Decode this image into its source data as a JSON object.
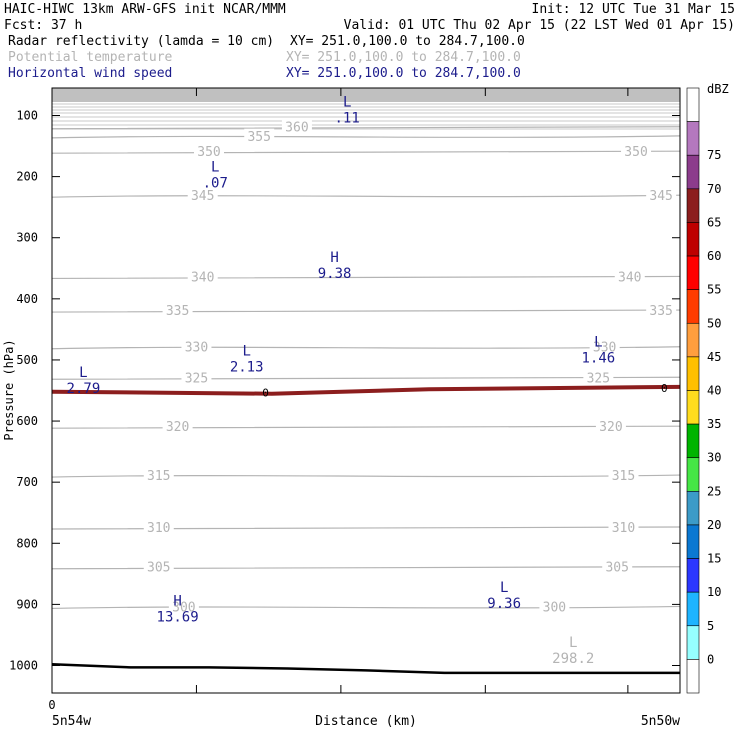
{
  "header": {
    "line1_left": "HAIC-HIWC 13km ARW-GFS init   NCAR/MMM",
    "line1_right": "Init: 12 UTC Tue 31 Mar 15",
    "fcst": "Fcst:   37 h",
    "valid": "Valid: 01 UTC Thu 02 Apr 15 (22 LST Wed 01 Apr 15)",
    "fields": [
      {
        "name": "Radar reflectivity (lamda = 10 cm)",
        "xy": "XY= 251.0,100.0 to 284.7,100.0",
        "color": "#000000"
      },
      {
        "name": "Potential temperature",
        "xy": "XY= 251.0,100.0 to 284.7,100.0",
        "color": "#b4b4b4"
      },
      {
        "name": "Horizontal wind speed",
        "xy": "XY= 251.0,100.0 to 284.7,100.0",
        "color": "#1c1c8c"
      }
    ]
  },
  "chart_data": {
    "type": "cross-section contour",
    "xlabel": "Distance (km)",
    "ylabel": "Pressure (hPa)",
    "x_tick_labels": [
      {
        "x": 0,
        "label": "0"
      }
    ],
    "x_endpoints": [
      "5n54w",
      "5n50w"
    ],
    "y_axis": {
      "ylim": [
        55,
        1045
      ],
      "ticks": [
        100,
        200,
        300,
        400,
        500,
        600,
        700,
        800,
        900,
        1000
      ]
    },
    "colorbar": {
      "unit": "dBZ",
      "levels": [
        0,
        5,
        10,
        15,
        20,
        25,
        30,
        35,
        40,
        45,
        50,
        55,
        60,
        65,
        70,
        75
      ],
      "colors": [
        "#ffffff",
        "#96ffff",
        "#1eb4ff",
        "#2b37ff",
        "#0a78d2",
        "#3c9bc8",
        "#46e646",
        "#00b400",
        "#ffdc1e",
        "#ffc000",
        "#ff9e3e",
        "#ff3c00",
        "#ff0000",
        "#be0000",
        "#8c1e1e",
        "#8c3c8c",
        "#b478be",
        "#ffffff"
      ]
    },
    "theta_contours": [
      {
        "value": 355,
        "p": 135,
        "labels": [
          {
            "x": 0.33,
            "text": "355"
          }
        ]
      },
      {
        "value": 360,
        "p": 120,
        "labels": [
          {
            "x": 0.39,
            "text": "360"
          }
        ]
      },
      {
        "value": 350,
        "p": 160,
        "labels": [
          {
            "x": 0.25,
            "text": "350"
          },
          {
            "x": 0.93,
            "text": "350"
          }
        ]
      },
      {
        "value": 345,
        "p": 232,
        "labels": [
          {
            "x": 0.24,
            "text": "345"
          },
          {
            "x": 0.97,
            "text": "345"
          }
        ]
      },
      {
        "value": 340,
        "p": 365,
        "labels": [
          {
            "x": 0.24,
            "text": "340"
          },
          {
            "x": 0.92,
            "text": "340"
          }
        ]
      },
      {
        "value": 335,
        "p": 420,
        "labels": [
          {
            "x": 0.2,
            "text": "335"
          },
          {
            "x": 0.97,
            "text": "335"
          }
        ]
      },
      {
        "value": 330,
        "p": 480,
        "labels": [
          {
            "x": 0.23,
            "text": "330"
          },
          {
            "x": 0.88,
            "text": "330"
          }
        ]
      },
      {
        "value": 325,
        "p": 530,
        "labels": [
          {
            "x": 0.23,
            "text": "325"
          },
          {
            "x": 0.87,
            "text": "325"
          }
        ]
      },
      {
        "value": 320,
        "p": 610,
        "labels": [
          {
            "x": 0.2,
            "text": "320"
          },
          {
            "x": 0.89,
            "text": "320"
          }
        ]
      },
      {
        "value": 315,
        "p": 690,
        "labels": [
          {
            "x": 0.17,
            "text": "315"
          },
          {
            "x": 0.91,
            "text": "315"
          }
        ]
      },
      {
        "value": 310,
        "p": 775,
        "labels": [
          {
            "x": 0.17,
            "text": "310"
          },
          {
            "x": 0.91,
            "text": "310"
          }
        ]
      },
      {
        "value": 305,
        "p": 840,
        "labels": [
          {
            "x": 0.17,
            "text": "305"
          },
          {
            "x": 0.9,
            "text": "305"
          }
        ]
      },
      {
        "value": 300,
        "p": 905,
        "labels": [
          {
            "x": 0.21,
            "text": "300"
          },
          {
            "x": 0.8,
            "text": "300"
          }
        ]
      }
    ],
    "extrema": [
      {
        "type": "L",
        "value": ".11",
        "x": 0.47,
        "p": 85,
        "color": "#1c1c8c"
      },
      {
        "type": "L",
        "value": ".07",
        "x": 0.26,
        "p": 192,
        "color": "#1c1c8c"
      },
      {
        "type": "H",
        "value": "9.38",
        "x": 0.45,
        "p": 340,
        "color": "#1c1c8c"
      },
      {
        "type": "L",
        "value": "2.13",
        "x": 0.31,
        "p": 493,
        "color": "#1c1c8c"
      },
      {
        "type": "L",
        "value": "1.46",
        "x": 0.87,
        "p": 478,
        "color": "#1c1c8c"
      },
      {
        "type": "L",
        "value": "2.79",
        "x": 0.05,
        "p": 528,
        "color": "#1c1c8c"
      },
      {
        "type": "L",
        "value": "9.36",
        "x": 0.72,
        "p": 880,
        "color": "#1c1c8c"
      },
      {
        "type": "H",
        "value": "13.69",
        "x": 0.2,
        "p": 902,
        "color": "#1c1c8c"
      },
      {
        "type": "L",
        "value": "298.2",
        "x": 0.83,
        "p": 970,
        "color": "#b4b4b4"
      }
    ],
    "zero_line_label": "0",
    "reflectivity_band_p": [
      552,
      544
    ],
    "terrain_surface_p": [
      998,
      1003,
      1003,
      1005,
      1008,
      1012,
      1012,
      1012,
      1012
    ]
  }
}
